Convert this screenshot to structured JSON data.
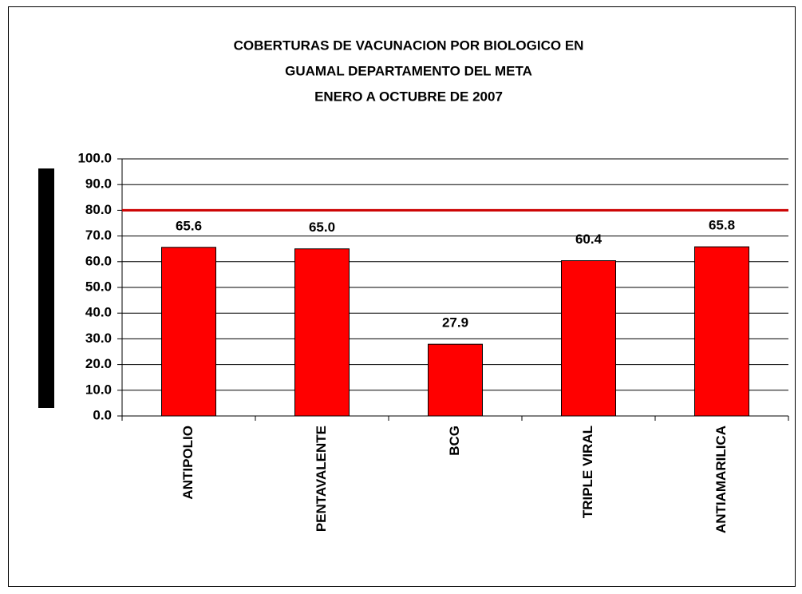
{
  "chart_data": {
    "type": "bar",
    "title": [
      "COBERTURAS DE VACUNACION POR BIOLOGICO EN",
      "GUAMAL DEPARTAMENTO DEL META",
      "ENERO A OCTUBRE DE 2007"
    ],
    "categories": [
      "ANTIPOLIO",
      "PENTAVALENTE",
      "BCG",
      "TRIPLE VIRAL",
      "ANTIAMARILICA"
    ],
    "values": [
      65.6,
      65.0,
      27.9,
      60.4,
      65.8
    ],
    "value_labels": [
      "65.6",
      "65.0",
      "27.9",
      "60.4",
      "65.8"
    ],
    "color": "#ff0000",
    "ylim": [
      0,
      100
    ],
    "yticks": [
      {
        "value": 0,
        "label": "0.0"
      },
      {
        "value": 10,
        "label": "10.0"
      },
      {
        "value": 20,
        "label": "20.0"
      },
      {
        "value": 30,
        "label": "30.0"
      },
      {
        "value": 40,
        "label": "40.0"
      },
      {
        "value": 50,
        "label": "50.0"
      },
      {
        "value": 60,
        "label": "60.0"
      },
      {
        "value": 70,
        "label": "70.0"
      },
      {
        "value": 80,
        "label": "80.0"
      },
      {
        "value": 90,
        "label": "90.0"
      },
      {
        "value": 100,
        "label": "100.0"
      }
    ],
    "grid": true,
    "reference_line": {
      "value": 80,
      "color": "#cc0000"
    }
  }
}
